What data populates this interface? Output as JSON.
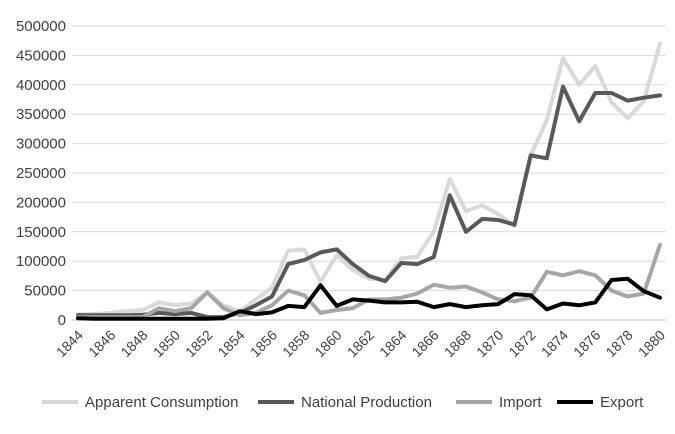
{
  "chart_data": {
    "type": "line",
    "title": "",
    "xlabel": "",
    "ylabel": "",
    "x": [
      1844,
      1845,
      1846,
      1847,
      1848,
      1849,
      1850,
      1851,
      1852,
      1853,
      1854,
      1855,
      1856,
      1857,
      1858,
      1859,
      1860,
      1861,
      1862,
      1863,
      1864,
      1865,
      1866,
      1867,
      1868,
      1869,
      1870,
      1871,
      1872,
      1873,
      1874,
      1875,
      1876,
      1877,
      1878,
      1879,
      1880
    ],
    "x_tick_labels": [
      "1844",
      "1846",
      "1848",
      "1850",
      "1852",
      "1854",
      "1856",
      "1858",
      "1860",
      "1862",
      "1864",
      "1866",
      "1868",
      "1870",
      "1872",
      "1874",
      "1876",
      "1878",
      "1880"
    ],
    "ylim": [
      0,
      500000
    ],
    "y_ticks": [
      0,
      50000,
      100000,
      150000,
      200000,
      250000,
      300000,
      350000,
      400000,
      450000,
      500000
    ],
    "y_tick_labels": [
      "0",
      "50000",
      "100000",
      "150000",
      "200000",
      "250000",
      "300000",
      "350000",
      "400000",
      "450000",
      "500000"
    ],
    "grid": "horizontal",
    "legend": "bottom",
    "series": [
      {
        "name": "Apparent Consumption",
        "color": "#d9d9d9",
        "values": [
          10000,
          10000,
          12000,
          15000,
          17000,
          30000,
          25000,
          28000,
          47000,
          25000,
          15000,
          35000,
          55000,
          118000,
          120000,
          65000,
          110000,
          85000,
          70000,
          68000,
          105000,
          108000,
          150000,
          240000,
          185000,
          195000,
          180000,
          160000,
          280000,
          340000,
          445000,
          400000,
          432000,
          370000,
          343000,
          372000,
          470000
        ]
      },
      {
        "name": "National Production",
        "color": "#595959",
        "values": [
          8000,
          8000,
          8000,
          8000,
          9000,
          12000,
          10000,
          12000,
          5000,
          5000,
          12000,
          25000,
          40000,
          95000,
          102000,
          115000,
          120000,
          95000,
          75000,
          66000,
          97000,
          95000,
          107000,
          212000,
          150000,
          172000,
          170000,
          162000,
          280000,
          275000,
          397000,
          338000,
          386000,
          386000,
          373000,
          378000,
          382000
        ]
      },
      {
        "name": "Import",
        "color": "#a6a6a6",
        "values": [
          5000,
          5000,
          5000,
          5000,
          5000,
          20000,
          15000,
          20000,
          47000,
          20000,
          8000,
          12000,
          25000,
          50000,
          42000,
          12000,
          17000,
          20000,
          35000,
          35000,
          38000,
          45000,
          60000,
          55000,
          57000,
          47000,
          35000,
          32000,
          38000,
          82000,
          76000,
          83000,
          76000,
          50000,
          40000,
          45000,
          128000
        ]
      },
      {
        "name": "Export",
        "color": "#000000",
        "values": [
          3000,
          2000,
          2000,
          2000,
          2000,
          2000,
          2000,
          2000,
          2000,
          3000,
          15000,
          10000,
          13000,
          24000,
          22000,
          59000,
          24000,
          35000,
          33000,
          30000,
          30000,
          31000,
          22000,
          27000,
          22000,
          25000,
          27000,
          44000,
          42000,
          18000,
          28000,
          25000,
          30000,
          68000,
          70000,
          49000,
          38000
        ]
      }
    ]
  }
}
